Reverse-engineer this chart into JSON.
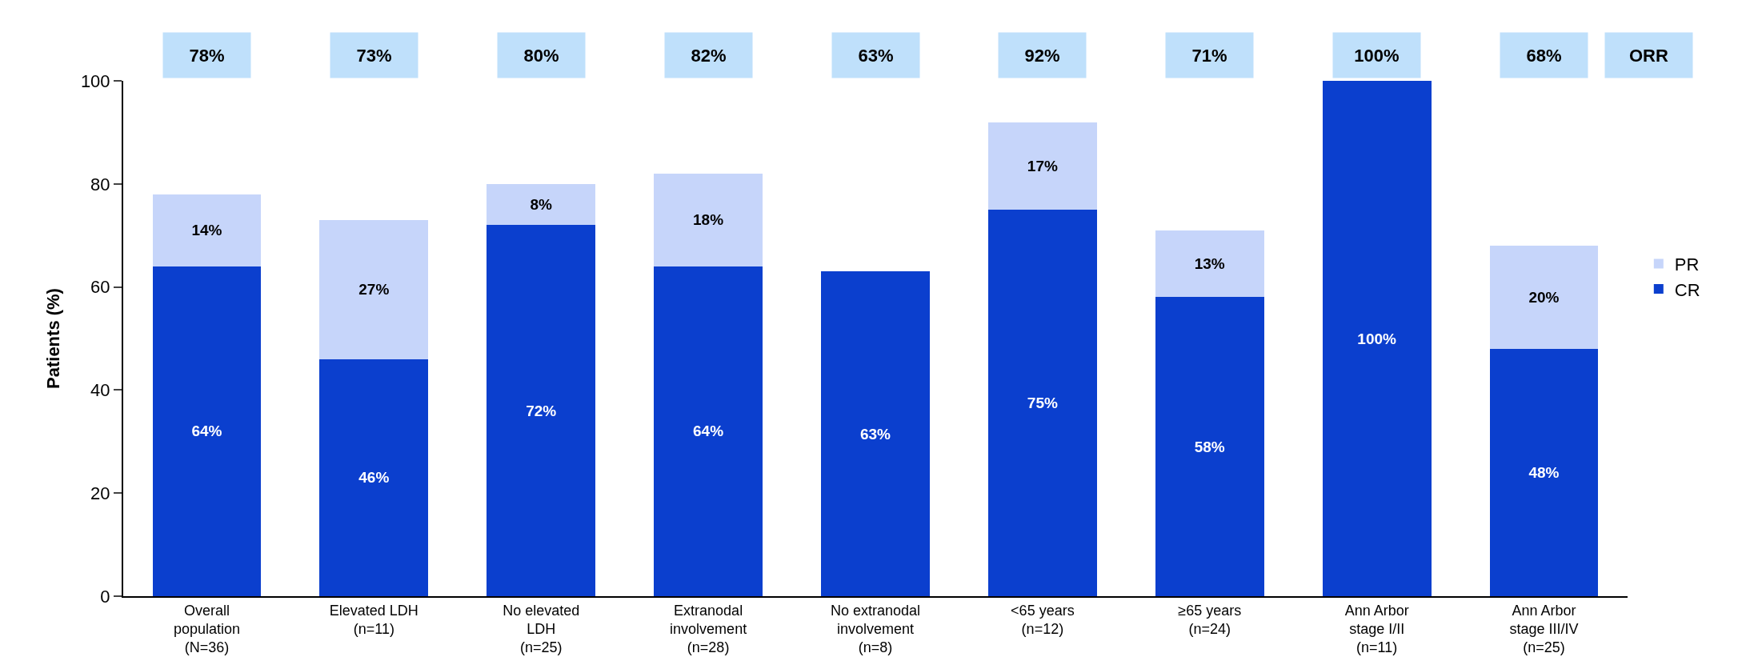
{
  "chart_data": {
    "type": "bar",
    "stacked": true,
    "ylabel": "Patients (%)",
    "categories": [
      "Overall\npopulation\n(N=36)",
      "Elevated LDH\n(n=11)",
      "No elevated\nLDH\n(n=25)",
      "Extranodal\ninvolvement\n(n=28)",
      "No extranodal\ninvolvement\n(n=8)",
      "<65 years\n(n=12)",
      "≥65 years\n(n=24)",
      "Ann Arbor\nstage I/II\n(n=11)",
      "Ann Arbor\nstage III/IV\n(n=25)"
    ],
    "series": [
      {
        "name": "CR",
        "color": "#0b3fce",
        "values": [
          64,
          46,
          72,
          64,
          63,
          75,
          58,
          100,
          48
        ],
        "value_labels": [
          "64%",
          "46%",
          "72%",
          "64%",
          "63%",
          "75%",
          "58%",
          "100%",
          "48%"
        ]
      },
      {
        "name": "PR",
        "color": "#c6d5fa",
        "values": [
          14,
          27,
          8,
          18,
          null,
          17,
          13,
          null,
          20
        ],
        "value_labels": [
          "14%",
          "27%",
          "8%",
          "18%",
          null,
          "17%",
          "13%",
          null,
          "20%"
        ]
      }
    ],
    "ylim": [
      0,
      100
    ],
    "yticks": [
      0,
      20,
      40,
      60,
      80,
      100
    ],
    "legend": "right",
    "annotations": [
      "78%",
      "73%",
      "80%",
      "82%",
      "63%",
      "92%",
      "71%",
      "100%",
      "68%",
      "ORR"
    ]
  }
}
